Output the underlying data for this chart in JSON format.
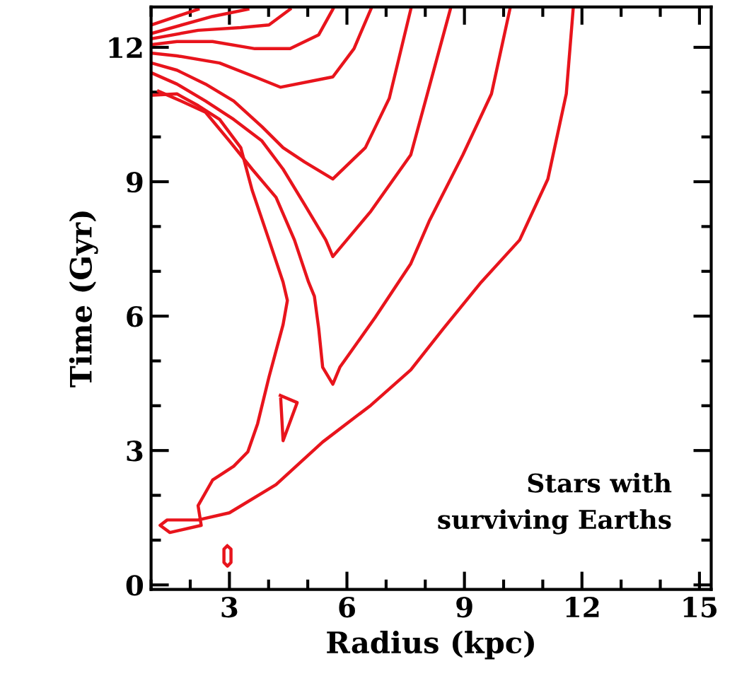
{
  "chart_data": {
    "type": "line",
    "xlabel": "Radius (kpc)",
    "ylabel": "Time (Gyr)",
    "xlim": [
      1.0,
      15.3
    ],
    "xticks": [
      3,
      6,
      9,
      12,
      15
    ],
    "ylim": [
      -0.1,
      12.9
    ],
    "yticks": [
      0,
      3,
      6,
      9,
      12
    ],
    "grid": false,
    "legend": false,
    "marker": "none",
    "line_style": "solid",
    "annotations": [
      "Stars with\nsurviving Earths"
    ],
    "series": [
      {
        "color": "#e8141c",
        "x": [
          11.78,
          11.6,
          11.13,
          10.41,
          9.43,
          8.46,
          7.63,
          6.61,
          5.38,
          4.19,
          3.0,
          2.2,
          1.41,
          1.23,
          1.48,
          2.28,
          2.2,
          2.57,
          3.11,
          3.47,
          3.72,
          4.01,
          4.37,
          4.48,
          4.37,
          4.01,
          3.58,
          3.29,
          2.75,
          2.2,
          1.66,
          1.01
        ],
        "values": [
          12.9,
          10.96,
          9.06,
          7.7,
          6.76,
          5.72,
          4.8,
          4.01,
          3.19,
          2.24,
          1.61,
          1.45,
          1.45,
          1.33,
          1.17,
          1.33,
          1.77,
          2.34,
          2.65,
          2.97,
          3.6,
          4.64,
          5.81,
          6.35,
          6.76,
          7.7,
          8.81,
          9.76,
          10.39,
          10.7,
          10.96,
          10.93
        ]
      },
      {
        "color": "#e8141c",
        "x": [
          10.16,
          9.69,
          8.96,
          8.1,
          7.63,
          6.72,
          5.82,
          5.64,
          5.38,
          5.28,
          5.17,
          5.02,
          4.66,
          4.19,
          3.58,
          3.0,
          2.39,
          1.77,
          1.19
        ],
        "values": [
          12.85,
          10.96,
          9.6,
          8.12,
          7.17,
          5.97,
          4.86,
          4.48,
          4.86,
          5.72,
          6.44,
          6.76,
          7.7,
          8.65,
          9.28,
          9.91,
          10.55,
          10.8,
          11.02
        ]
      },
      {
        "color": "#e8141c",
        "x": [
          8.64,
          7.63,
          6.61,
          5.64,
          5.46,
          4.92,
          4.37,
          3.83,
          3.11,
          2.39,
          1.66,
          1.01
        ],
        "values": [
          12.85,
          9.6,
          8.34,
          7.33,
          7.7,
          8.49,
          9.28,
          9.91,
          10.39,
          10.8,
          11.18,
          11.43
        ]
      },
      {
        "color": "#e8141c",
        "x": [
          7.63,
          7.08,
          6.47,
          5.64,
          4.92,
          4.37,
          3.83,
          3.11,
          2.39,
          1.66,
          1.01
        ],
        "values": [
          12.85,
          10.86,
          9.76,
          9.06,
          9.44,
          9.76,
          10.23,
          10.8,
          11.18,
          11.49,
          11.65
        ]
      },
      {
        "color": "#e8141c",
        "x": [
          6.61,
          6.18,
          5.64,
          4.3,
          3.65,
          2.75,
          1.66,
          1.01
        ],
        "values": [
          12.85,
          11.97,
          11.34,
          11.11,
          11.34,
          11.65,
          11.81,
          11.87
        ]
      },
      {
        "color": "#e8141c",
        "x": [
          5.64,
          5.28,
          4.55,
          3.65,
          2.57,
          1.66,
          1.01
        ],
        "values": [
          12.85,
          12.28,
          11.97,
          11.97,
          12.13,
          12.13,
          12.06
        ]
      },
      {
        "color": "#e8141c",
        "x": [
          4.55,
          4.01,
          3.29,
          2.2,
          1.01
        ],
        "values": [
          12.85,
          12.5,
          12.44,
          12.38,
          12.19
        ]
      },
      {
        "color": "#e8141c",
        "x": [
          3.47,
          2.57,
          1.01
        ],
        "values": [
          12.85,
          12.69,
          12.31
        ]
      },
      {
        "color": "#e8141c",
        "x": [
          2.2,
          1.01
        ],
        "values": [
          12.85,
          12.5
        ]
      },
      {
        "color": "#e8141c",
        "x": [
          4.3,
          4.73,
          4.37,
          4.31
        ],
        "values": [
          4.23,
          4.07,
          3.22,
          4.15
        ]
      },
      {
        "color": "#e8141c",
        "x": [
          2.95,
          3.04,
          3.04,
          2.95,
          2.86,
          2.86,
          2.93
        ],
        "values": [
          0.87,
          0.8,
          0.5,
          0.42,
          0.5,
          0.8,
          0.86
        ]
      }
    ]
  }
}
